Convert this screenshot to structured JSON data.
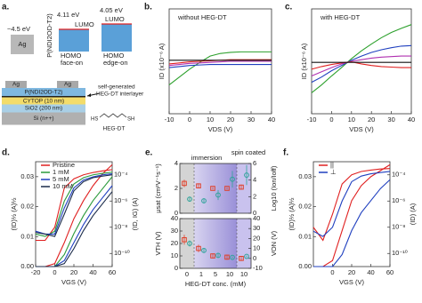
{
  "diagram": {
    "label": "a.",
    "ag_work_function": "~4.5 eV",
    "ag": "Ag",
    "polymer": "P(NDI2OD-T2)",
    "face_on": {
      "energy": "4.11 eV",
      "lumo": "LUMO",
      "homo": "HOMO",
      "orientation": "face-on"
    },
    "edge_on": {
      "energy": "4.05 eV",
      "lumo": "LUMO",
      "homo": "HOMO",
      "orientation": "edge-on"
    },
    "stack": {
      "ag_left": "Ag",
      "ag_right": "Ag",
      "semiconductor": "P(NDI2OD-T2)",
      "cytop": "CYTOP (10 nm)",
      "sio2": "SiO2 (200 nm)",
      "si": "Si (n++)",
      "interlayer_1": "self-generated",
      "interlayer_2": "HEG-DT interlayer"
    },
    "molecule": {
      "name": "HEG-DT",
      "left": "HS",
      "right": "SH"
    }
  },
  "chart_data": [
    {
      "type": "line",
      "label": "b.",
      "title": "without HEG-DT",
      "xlabel": "VDS (V)",
      "ylabel": "ID (x10⁻⁶ A)",
      "x": [
        -10,
        -5,
        0,
        5,
        10,
        15,
        20,
        25,
        30,
        35,
        40
      ],
      "xlim": [
        -10,
        40
      ],
      "xticks": [
        -10,
        0,
        10,
        20,
        30,
        40
      ],
      "ylim": [
        -1,
        1
      ],
      "series": [
        {
          "color": "#2ca02c",
          "values": [
            -0.45,
            -0.3,
            -0.15,
            -0.02,
            0.1,
            0.15,
            0.17,
            0.18,
            0.18,
            0.18,
            0.18
          ]
        },
        {
          "color": "#1f3fbf",
          "values": [
            -0.12,
            -0.1,
            -0.08,
            -0.07,
            -0.06,
            -0.06,
            -0.06,
            -0.06,
            -0.06,
            -0.06,
            -0.06
          ]
        },
        {
          "color": "#b030b0",
          "values": [
            -0.08,
            -0.06,
            -0.04,
            -0.03,
            -0.02,
            -0.01,
            0,
            0,
            0,
            0,
            0
          ]
        },
        {
          "color": "#e02020",
          "values": [
            -0.05,
            -0.03,
            -0.01,
            0,
            0.01,
            0.02,
            0.03,
            0.03,
            0.03,
            0.03,
            0.03
          ]
        },
        {
          "color": "#111111",
          "values": [
            0.02,
            0.02,
            0.02,
            0.02,
            0.02,
            0.02,
            0.02,
            0.02,
            0.02,
            0.02,
            0.02
          ]
        }
      ]
    },
    {
      "type": "line",
      "label": "c.",
      "title": "with HEG-DT",
      "xlabel": "VDS (V)",
      "ylabel": "ID (x10⁻⁶ A)",
      "x": [
        -10,
        -5,
        0,
        5,
        10,
        15,
        20,
        25,
        30,
        35,
        40
      ],
      "xlim": [
        -10,
        40
      ],
      "xticks": [
        -10,
        0,
        10,
        20,
        30,
        40
      ],
      "ylim": [
        -1,
        1
      ],
      "series": [
        {
          "color": "#2ca02c",
          "values": [
            -0.6,
            -0.45,
            -0.28,
            -0.12,
            0.05,
            0.2,
            0.33,
            0.45,
            0.55,
            0.63,
            0.7
          ]
        },
        {
          "color": "#1f3fbf",
          "values": [
            -0.4,
            -0.3,
            -0.18,
            -0.08,
            0.02,
            0.1,
            0.17,
            0.22,
            0.26,
            0.29,
            0.3
          ]
        },
        {
          "color": "#b030b0",
          "values": [
            -0.28,
            -0.2,
            -0.12,
            -0.05,
            0,
            0.03,
            0.06,
            0.08,
            0.09,
            0.1,
            0.1
          ]
        },
        {
          "color": "#e02020",
          "values": [
            -0.15,
            -0.1,
            -0.06,
            -0.03,
            -0.01,
            -0.05,
            -0.08,
            -0.1,
            -0.11,
            -0.12,
            -0.12
          ]
        },
        {
          "color": "#111111",
          "values": [
            -0.02,
            -0.02,
            -0.02,
            -0.02,
            -0.02,
            -0.02,
            -0.02,
            -0.02,
            -0.02,
            -0.02,
            -0.02
          ]
        }
      ]
    },
    {
      "type": "line",
      "label": "d.",
      "xlabel": "VGS (V)",
      "ylabel": "(ID)½ (A)½",
      "y2label": "(ID, IG) (A)",
      "x": [
        -20,
        -10,
        0,
        10,
        20,
        30,
        40,
        50,
        60
      ],
      "xlim": [
        -20,
        60
      ],
      "xticks": [
        -20,
        0,
        20,
        40,
        60
      ],
      "ylim": [
        0,
        0.035
      ],
      "yticks": [
        {
          "value": 0,
          "label": "0.00"
        },
        0.01,
        0.02,
        0.03
      ],
      "y2lim": [
        1e-11,
        0.001
      ],
      "y2log": true,
      "y2ticks": [
        {
          "value": 1e-10,
          "label": "10⁻¹⁰"
        },
        {
          "value": 1e-08,
          "label": "10⁻⁸"
        },
        {
          "value": 1e-06,
          "label": "10⁻⁶"
        },
        {
          "value": 0.0001,
          "label": "10⁻⁴"
        }
      ],
      "series": [
        {
          "name": "Pristine",
          "color": "#e02020",
          "values": [
            0,
            0,
            0.001,
            0.008,
            0.016,
            0.022,
            0.027,
            0.031,
            0.034
          ]
        },
        {
          "name": "1 mM",
          "color": "#2a9a3a",
          "values": [
            0,
            0,
            0,
            0.004,
            0.011,
            0.017,
            0.022,
            0.026,
            0.03
          ]
        },
        {
          "name": "5 mM",
          "color": "#1f3fbf",
          "values": [
            0,
            0,
            0,
            0.002,
            0.008,
            0.014,
            0.019,
            0.023,
            0.027
          ]
        },
        {
          "name": "10 mM",
          "color": "#1a2a4a",
          "values": [
            0,
            0,
            0,
            0.001,
            0.006,
            0.012,
            0.017,
            0.021,
            0.025
          ]
        },
        {
          "color": "#e02020",
          "axis": "y2",
          "values": [
            1e-09,
            1e-09,
            1e-08,
            1e-05,
            5e-05,
            0.0001,
            0.00015,
            0.0002,
            0.00025
          ]
        },
        {
          "color": "#2a9a3a",
          "axis": "y2",
          "values": [
            3e-09,
            2e-09,
            5e-09,
            1e-06,
            2e-05,
            6e-05,
            0.0001,
            0.00013,
            0.00016
          ]
        },
        {
          "color": "#1f3fbf",
          "axis": "y2",
          "values": [
            5e-09,
            3e-09,
            3e-09,
            3e-07,
            1e-05,
            4e-05,
            7e-05,
            0.0001,
            0.00012
          ]
        },
        {
          "color": "#1a2a4a",
          "axis": "y2",
          "values": [
            4e-09,
            3e-09,
            2e-09,
            1e-07,
            6e-06,
            3e-05,
            6e-05,
            8e-05,
            0.0001
          ]
        }
      ]
    },
    {
      "type": "scatter",
      "label": "e.",
      "ylabel": "μsat (cm²V⁻¹s⁻¹)",
      "y2label": "Log10 (Ion/Ioff)",
      "annotations": [
        "immersion",
        "spin coated"
      ],
      "ylim": [
        0,
        4
      ],
      "yticks": [
        0,
        2,
        4
      ],
      "y2lim": [
        0,
        6
      ],
      "y2ticks": [
        0,
        2,
        4,
        6
      ],
      "series": [
        {
          "color": "#e0402a",
          "marker": "square",
          "values": [
            2.4,
            2.2,
            2.0,
            2.0,
            2.1
          ],
          "errors": [
            0.3,
            0.2,
            0.1,
            0.1,
            0.2
          ]
        },
        {
          "color": "#2fa39a",
          "marker": "circle",
          "axis": "y2",
          "values": [
            1.7,
            1.5,
            2.2,
            4.1,
            4.6
          ],
          "errors": [
            0.3,
            0.3,
            0.6,
            1.0,
            1.2
          ]
        }
      ]
    },
    {
      "type": "scatter",
      "xlabel": "HEG-DT conc. (mM)",
      "ylabel": "VTH (V)",
      "y2label": "VON (V)",
      "categories": [
        "0",
        "1",
        "5",
        "10",
        "10"
      ],
      "ylim": [
        0,
        40
      ],
      "yticks": [
        0,
        10,
        20,
        30,
        40
      ],
      "y2lim": [
        -10,
        40
      ],
      "y2ticks": [
        -10,
        0,
        10,
        20,
        30,
        40
      ],
      "series": [
        {
          "color": "#e0402a",
          "marker": "square",
          "values": [
            23,
            16,
            10,
            9,
            8
          ],
          "errors": [
            4,
            3,
            2,
            2,
            2
          ]
        },
        {
          "color": "#2fa39a",
          "marker": "circle",
          "axis": "y2",
          "values": [
            15,
            8,
            3,
            1,
            2
          ],
          "errors": [
            3,
            2,
            2,
            1,
            1
          ]
        }
      ]
    },
    {
      "type": "line",
      "label": "f.",
      "xlabel": "VGS (V)",
      "ylabel": "(ID)½ (A)½",
      "y2label": "(ID) (A)",
      "x": [
        -20,
        -10,
        0,
        10,
        20,
        30,
        40,
        50,
        60
      ],
      "xlim": [
        -20,
        60
      ],
      "xticks": [
        0,
        20,
        40,
        60
      ],
      "ylim": [
        0,
        0.035
      ],
      "yticks": [
        {
          "value": 0,
          "label": "0.00"
        },
        0.01,
        0.02,
        0.03
      ],
      "y2lim": [
        1e-11,
        0.001
      ],
      "y2log": true,
      "y2ticks": [
        {
          "value": 1e-10,
          "label": "10⁻¹⁰"
        },
        {
          "value": 1e-08,
          "label": "10⁻⁸"
        },
        {
          "value": 1e-06,
          "label": "10⁻⁶"
        },
        {
          "value": 0.0001,
          "label": "10⁻⁴"
        }
      ],
      "series": [
        {
          "name": "||",
          "color": "#e02020",
          "values": [
            0,
            0,
            0.002,
            0.012,
            0.022,
            0.027,
            0.03,
            0.032,
            0.034
          ]
        },
        {
          "name": "⊥",
          "color": "#1f3fbf",
          "values": [
            0,
            0,
            0,
            0.004,
            0.012,
            0.018,
            0.022,
            0.026,
            0.029
          ]
        },
        {
          "color": "#e02020",
          "axis": "y2",
          "values": [
            1e-08,
            1e-09,
            1e-07,
            2e-05,
            0.0001,
            0.00018,
            0.00023,
            0.00028,
            0.0003
          ]
        },
        {
          "color": "#1f3fbf",
          "axis": "y2",
          "values": [
            5e-09,
            2e-09,
            1e-08,
            1e-06,
            3e-05,
            8e-05,
            0.00012,
            0.00015,
            0.00018
          ]
        }
      ]
    }
  ]
}
